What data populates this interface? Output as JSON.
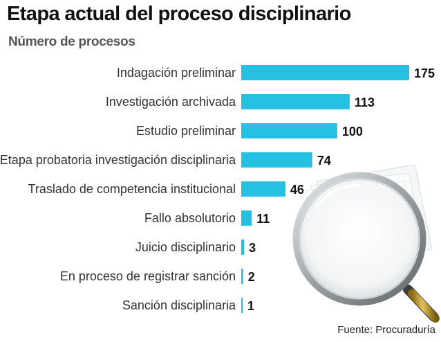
{
  "title": "Etapa actual del proceso disciplinario",
  "subtitle": "Número de procesos",
  "source": "Fuente: Procuraduría",
  "colors": {
    "bar": "#26c0e3",
    "text": "#333333",
    "value": "#111111"
  },
  "illustration": {
    "icon": "magnifying-glass-over-papers-icon"
  },
  "chart_data": {
    "type": "bar",
    "orientation": "horizontal",
    "title": "Etapa actual del proceso disciplinario",
    "subtitle": "Número de procesos",
    "categories": [
      "Indagación preliminar",
      "Investigación archivada",
      "Estudio preliminar",
      "Etapa probatoria investigación disciplinaria",
      "Traslado de competencia institucional",
      "Fallo absolutorio",
      "Juicio disciplinario",
      "En proceso de registrar sanción",
      "Sanción disciplinaria"
    ],
    "values": [
      175,
      113,
      100,
      74,
      46,
      11,
      3,
      2,
      1
    ],
    "xlim": [
      0,
      175
    ],
    "grid": false,
    "legend": "none",
    "source": "Fuente: Procuraduría"
  }
}
